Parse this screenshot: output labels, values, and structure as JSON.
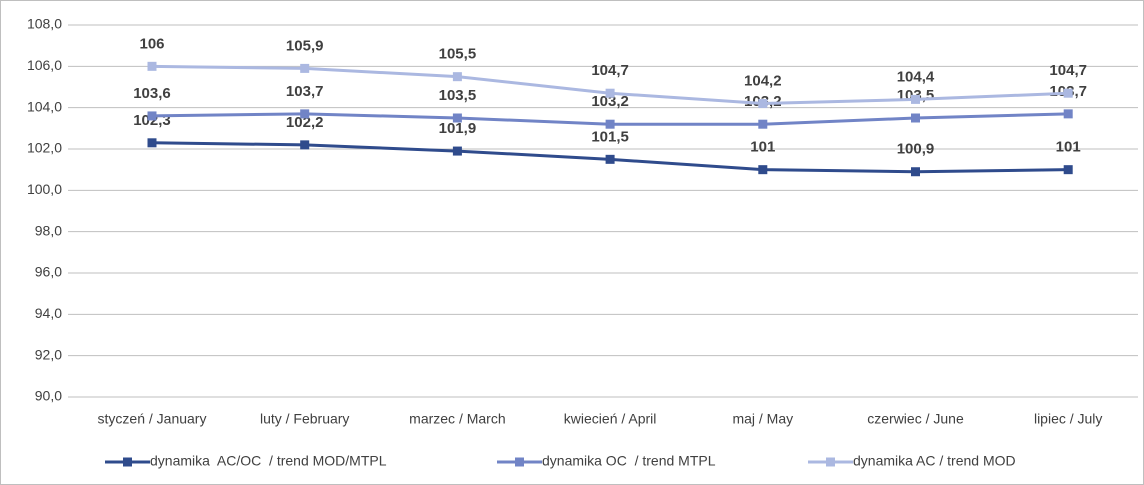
{
  "chart_data": {
    "type": "line",
    "categories": [
      "styczeń / January",
      "luty / February",
      "marzec / March",
      "kwiecień / April",
      "maj / May",
      "czerwiec / June",
      "lipiec / July"
    ],
    "series": [
      {
        "name": "dynamika  AC/OC  / trend MOD/MTPL",
        "color": "#2f4b8c",
        "values": [
          102.3,
          102.2,
          101.9,
          101.5,
          101,
          100.9,
          101
        ],
        "value_labels": [
          "102,3",
          "102,2",
          "101,9",
          "101,5",
          "101",
          "100,9",
          "101"
        ]
      },
      {
        "name": "dynamika OC  / trend MTPL",
        "color": "#7184c6",
        "values": [
          103.6,
          103.7,
          103.5,
          103.2,
          103.2,
          103.5,
          103.7
        ],
        "value_labels": [
          "103,6",
          "103,7",
          "103,5",
          "103,2",
          "103,2",
          "103,5",
          "103,7"
        ]
      },
      {
        "name": "dynamika AC / trend MOD",
        "color": "#abb8e1",
        "values": [
          106,
          105.9,
          105.5,
          104.7,
          104.2,
          104.4,
          104.7
        ],
        "value_labels": [
          "106",
          "105,9",
          "105,5",
          "104,7",
          "104,2",
          "104,4",
          "104,7"
        ]
      }
    ],
    "ylim": [
      90,
      108
    ],
    "yticks": [
      {
        "value": 90,
        "label": "90,0"
      },
      {
        "value": 92,
        "label": "92,0"
      },
      {
        "value": 94,
        "label": "94,0"
      },
      {
        "value": 96,
        "label": "96,0"
      },
      {
        "value": 98,
        "label": "98,0"
      },
      {
        "value": 100,
        "label": "100,0"
      },
      {
        "value": 102,
        "label": "102,0"
      },
      {
        "value": 104,
        "label": "104,0"
      },
      {
        "value": 106,
        "label": "106,0"
      },
      {
        "value": 108,
        "label": "108,0"
      }
    ],
    "grid": true,
    "legend": "bottom"
  }
}
